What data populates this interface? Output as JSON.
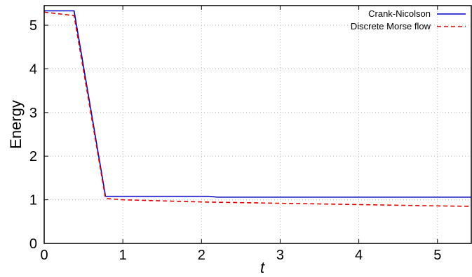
{
  "chart_data": {
    "type": "line",
    "xlabel": "t",
    "ylabel": "Energy",
    "xlim": [
      0,
      5.43
    ],
    "ylim": [
      0,
      5.45
    ],
    "x_ticks": [
      "0",
      "1",
      "2",
      "3",
      "4",
      "5"
    ],
    "y_ticks": [
      "0",
      "1",
      "2",
      "3",
      "4",
      "5"
    ],
    "grid": true,
    "legend_position": "top-right",
    "series": [
      {
        "name": "Crank-Nicolson",
        "color": "#0000cc",
        "style": "solid",
        "x": [
          0,
          0.38,
          0.78,
          2.1,
          2.2,
          5.43
        ],
        "y": [
          5.33,
          5.33,
          1.08,
          1.08,
          1.06,
          1.06
        ]
      },
      {
        "name": "Discrete Morse flow",
        "color": "#dd0000",
        "style": "dashed",
        "x": [
          0,
          0.1,
          0.38,
          0.78,
          1.0,
          2.0,
          3.0,
          4.0,
          5.0,
          5.43
        ],
        "y": [
          5.3,
          5.28,
          5.22,
          1.03,
          1.0,
          0.95,
          0.92,
          0.89,
          0.86,
          0.85
        ]
      }
    ]
  }
}
